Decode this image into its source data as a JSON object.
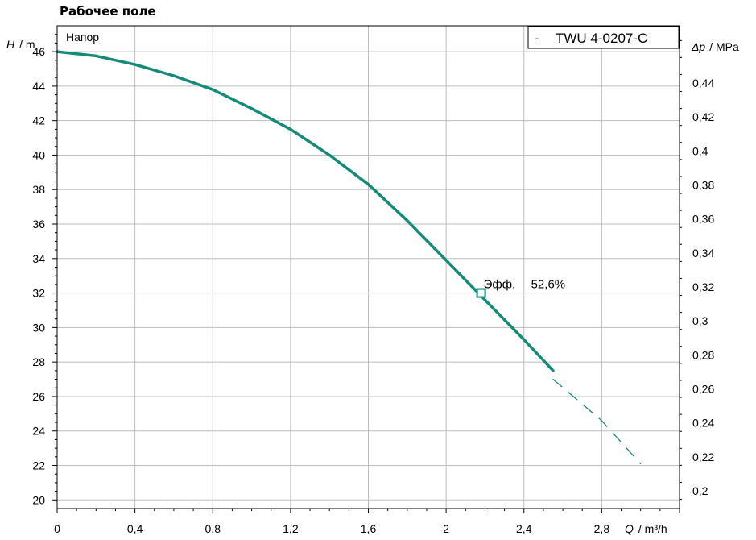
{
  "page": {
    "title": "Рабочее поле"
  },
  "colors": {
    "curve": "#148a78",
    "annotation": "#1d9d88",
    "axis": "#000000",
    "grid": "#bdbdbd"
  },
  "chart_data": {
    "type": "line",
    "title": "Рабочее поле",
    "panel_label": "Напор",
    "legend": {
      "marker": "-",
      "label": "TWU 4-0207-C",
      "position": "top-right"
    },
    "x_axis": {
      "label_var": "Q",
      "label_unit": "/ m³/h",
      "range": [
        0,
        3.2
      ],
      "ticks": [
        "0",
        "0,4",
        "0,8",
        "1,2",
        "1,6",
        "2",
        "2,4",
        "2,8"
      ],
      "tick_values": [
        0,
        0.4,
        0.8,
        1.2,
        1.6,
        2.0,
        2.4,
        2.8
      ]
    },
    "y_axis_left": {
      "label_var": "H",
      "label_unit": "/ m",
      "range": [
        19.5,
        47.5
      ],
      "ticks": [
        "20",
        "22",
        "24",
        "26",
        "28",
        "30",
        "32",
        "34",
        "36",
        "38",
        "40",
        "42",
        "44",
        "46"
      ],
      "tick_values": [
        20,
        22,
        24,
        26,
        28,
        30,
        32,
        34,
        36,
        38,
        40,
        42,
        44,
        46
      ]
    },
    "y_axis_right": {
      "label_var": "Δp",
      "label_unit": "/ MPa",
      "ticks": [
        "0,2",
        "0,22",
        "0,24",
        "0,26",
        "0,28",
        "0,3",
        "0,32",
        "0,34",
        "0,36",
        "0,38",
        "0,4",
        "0,42",
        "0,44"
      ],
      "tick_values": [
        0.2,
        0.22,
        0.24,
        0.26,
        0.28,
        0.3,
        0.32,
        0.34,
        0.36,
        0.38,
        0.4,
        0.42,
        0.44
      ]
    },
    "grid": true,
    "series": [
      {
        "name": "TWU 4-0207-C",
        "style": "solid",
        "x": [
          0,
          0.2,
          0.4,
          0.6,
          0.8,
          1.0,
          1.2,
          1.4,
          1.6,
          1.8,
          2.0,
          2.2,
          2.4,
          2.55
        ],
        "y": [
          46.0,
          45.75,
          45.25,
          44.6,
          43.8,
          42.7,
          41.5,
          40.0,
          38.3,
          36.2,
          33.9,
          31.6,
          29.3,
          27.5
        ]
      },
      {
        "name": "TWU 4-0207-C",
        "style": "dashed",
        "x": [
          2.55,
          2.8,
          3.0
        ],
        "y": [
          27.0,
          24.6,
          22.1
        ]
      }
    ],
    "annotations": [
      {
        "label": "Эфф.",
        "value": "52,6%",
        "x": 2.18,
        "y": 32.0,
        "marker": "square"
      }
    ]
  }
}
